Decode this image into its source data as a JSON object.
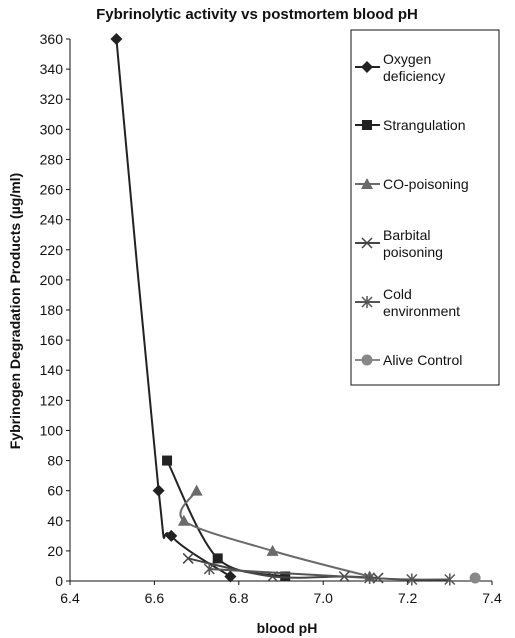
{
  "chart_data": {
    "type": "scatter",
    "title": "Fybrinolytic activity vs postmortem blood pH",
    "xlabel": "blood pH",
    "ylabel": "Fybrinogen Degradation Products (µg/ml)",
    "xlim": [
      6.4,
      7.4
    ],
    "ylim": [
      0,
      360
    ],
    "x_ticks": [
      "6.4",
      "6.6",
      "6.8",
      "7.0",
      "7.2",
      "7.4"
    ],
    "y_ticks": [
      "0",
      "20",
      "40",
      "60",
      "80",
      "100",
      "120",
      "140",
      "160",
      "180",
      "200",
      "220",
      "240",
      "260",
      "280",
      "300",
      "320",
      "340",
      "360"
    ],
    "grid": false,
    "legend_position": "right",
    "series": [
      {
        "name": "Oxygen deficiency",
        "legend_lines": [
          "Oxygen",
          "deficiency"
        ],
        "marker": "diamond",
        "color": "#222222",
        "points": [
          [
            6.51,
            360
          ],
          [
            6.61,
            60
          ],
          [
            6.64,
            30
          ],
          [
            6.78,
            3
          ]
        ]
      },
      {
        "name": "Strangulation",
        "legend_lines": [
          "Strangulation"
        ],
        "marker": "square",
        "color": "#222222",
        "points": [
          [
            6.63,
            80
          ],
          [
            6.75,
            15
          ],
          [
            6.91,
            3
          ]
        ]
      },
      {
        "name": "CO-poisoning",
        "legend_lines": [
          "CO-poisoning"
        ],
        "marker": "triangle",
        "color": "#6a6a6a",
        "points": [
          [
            6.7,
            60
          ],
          [
            6.67,
            40
          ],
          [
            6.88,
            20
          ],
          [
            7.11,
            3
          ]
        ]
      },
      {
        "name": "Barbital poisoning",
        "legend_lines": [
          "Barbital",
          "poisoning"
        ],
        "marker": "x",
        "color": "#444444",
        "points": [
          [
            6.68,
            15
          ],
          [
            6.88,
            3
          ],
          [
            7.05,
            3
          ],
          [
            7.13,
            2
          ]
        ]
      },
      {
        "name": "Cold environment",
        "legend_lines": [
          "Cold",
          "environment"
        ],
        "marker": "asterisk",
        "color": "#555555",
        "points": [
          [
            6.73,
            8
          ],
          [
            7.11,
            2
          ],
          [
            7.21,
            1
          ],
          [
            7.3,
            1
          ]
        ]
      },
      {
        "name": "Alive Control",
        "legend_lines": [
          "Alive Control"
        ],
        "marker": "circle",
        "color": "#888888",
        "points": [
          [
            7.36,
            2
          ]
        ]
      }
    ]
  }
}
